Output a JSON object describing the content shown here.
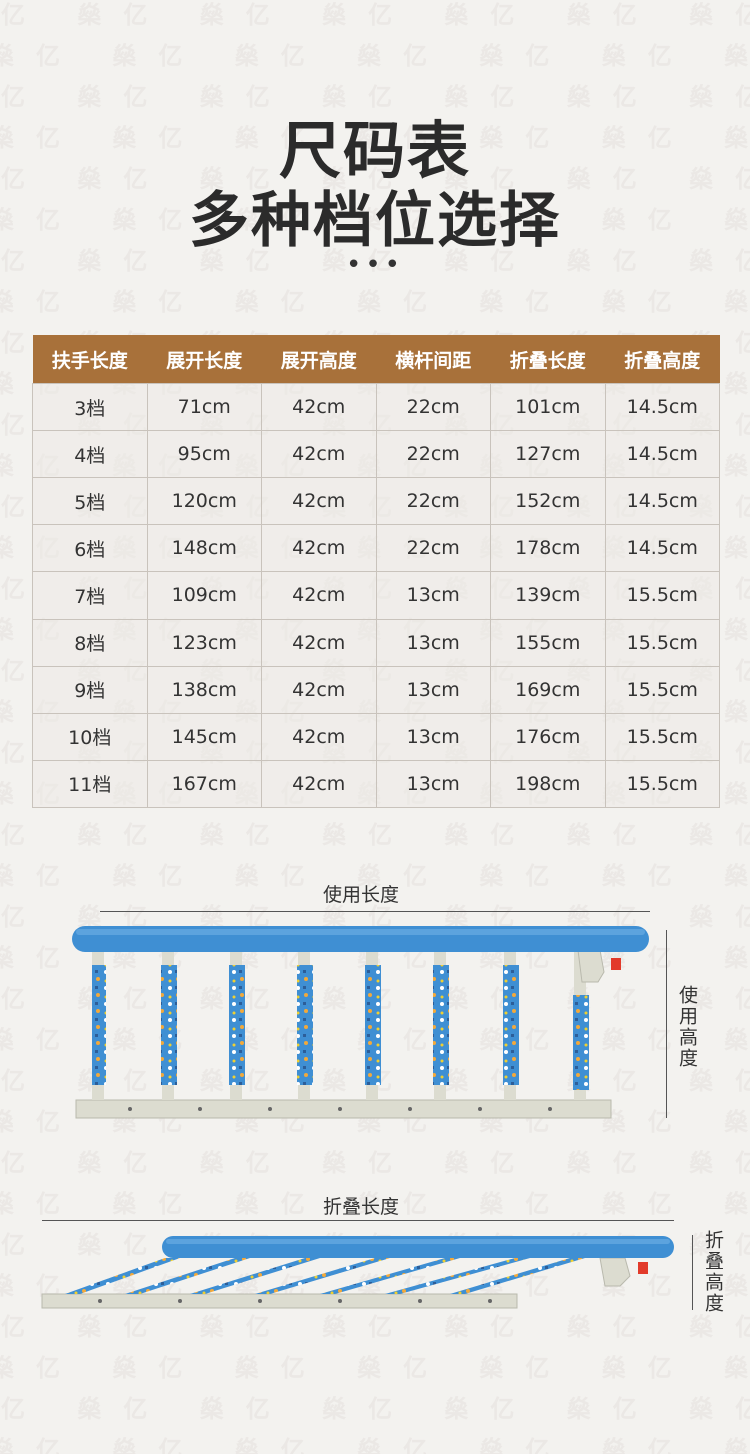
{
  "watermark_text": "燊亿",
  "title_line1": "尺码表",
  "title_line2": "多种档位选择",
  "dots": "•••",
  "table": {
    "headers": [
      "扶手长度",
      "展开长度",
      "展开高度",
      "横杆间距",
      "折叠长度",
      "折叠高度"
    ],
    "rows": [
      [
        "3档",
        "71cm",
        "42cm",
        "22cm",
        "101cm",
        "14.5cm"
      ],
      [
        "4档",
        "95cm",
        "42cm",
        "22cm",
        "127cm",
        "14.5cm"
      ],
      [
        "5档",
        "120cm",
        "42cm",
        "22cm",
        "152cm",
        "14.5cm"
      ],
      [
        "6档",
        "148cm",
        "42cm",
        "22cm",
        "178cm",
        "14.5cm"
      ],
      [
        "7档",
        "109cm",
        "42cm",
        "13cm",
        "139cm",
        "15.5cm"
      ],
      [
        "8档",
        "123cm",
        "42cm",
        "13cm",
        "155cm",
        "15.5cm"
      ],
      [
        "9档",
        "138cm",
        "42cm",
        "13cm",
        "169cm",
        "15.5cm"
      ],
      [
        "10档",
        "145cm",
        "42cm",
        "13cm",
        "176cm",
        "15.5cm"
      ],
      [
        "11档",
        "167cm",
        "42cm",
        "13cm",
        "198cm",
        "15.5cm"
      ]
    ]
  },
  "diagram": {
    "use_length_label": "使用长度",
    "use_height_label": "使用高度",
    "fold_length_label": "折叠长度",
    "fold_height_label": "折叠高度"
  },
  "colors": {
    "header_bg": "#a8713a",
    "rail_blue": "#3f8fd3",
    "frame_gray": "#dcdcd0",
    "handle_red": "#e23a2a"
  }
}
